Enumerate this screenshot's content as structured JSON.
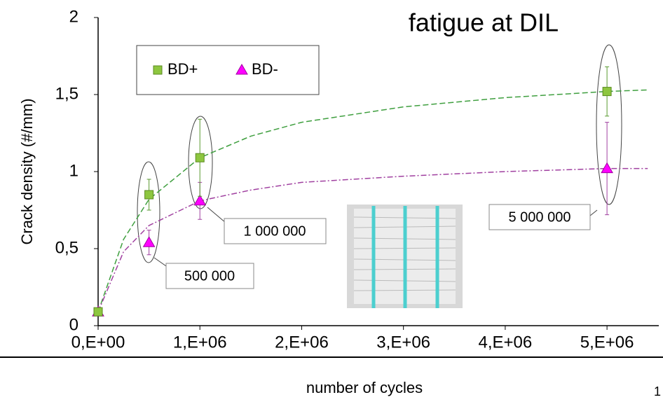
{
  "chart_data": {
    "type": "scatter",
    "title": "fatigue at DIL",
    "x_label": "number of cycles",
    "y_label": "Crack density (#/mm)",
    "xlim": [
      0,
      5500000
    ],
    "ylim": [
      0,
      2
    ],
    "xticks": [
      {
        "value": 0,
        "label": "0,E+00"
      },
      {
        "value": 1000000,
        "label": "1,E+06"
      },
      {
        "value": 2000000,
        "label": "2,E+06"
      },
      {
        "value": 3000000,
        "label": "3,E+06"
      },
      {
        "value": 4000000,
        "label": "4,E+06"
      },
      {
        "value": 5000000,
        "label": "5,E+06"
      }
    ],
    "yticks": [
      0,
      {
        "value": 0.5,
        "label": "0,5"
      },
      1,
      {
        "value": 1.5,
        "label": "1,5"
      },
      2
    ],
    "series": [
      {
        "name": "BD+",
        "color": "#8dc63f",
        "marker": "square",
        "x": [
          0,
          500000,
          1000000,
          5000000
        ],
        "values": [
          0.09,
          0.85,
          1.09,
          1.52
        ],
        "errors": [
          0,
          0.1,
          0.25,
          0.16
        ]
      },
      {
        "name": "BD-",
        "color": "#ff00ff",
        "marker": "triangle",
        "x": [
          0,
          500000,
          1000000,
          5000000
        ],
        "values": [
          0.09,
          0.54,
          0.81,
          1.02
        ],
        "errors": [
          0,
          0.08,
          0.12,
          0.3
        ]
      }
    ],
    "trendlines": [
      {
        "color": "#3f9f3f",
        "dash": "8 4",
        "x": [
          0,
          250000,
          500000,
          1000000,
          1500000,
          2000000,
          3000000,
          4000000,
          5000000,
          5400000
        ],
        "values": [
          0.09,
          0.56,
          0.82,
          1.09,
          1.23,
          1.32,
          1.42,
          1.48,
          1.52,
          1.53
        ]
      },
      {
        "color": "#a040a0",
        "dash": "8 3 2 3",
        "x": [
          0,
          250000,
          500000,
          1000000,
          1500000,
          2000000,
          3000000,
          4000000,
          5000000,
          5400000
        ],
        "values": [
          0.09,
          0.48,
          0.65,
          0.81,
          0.88,
          0.93,
          0.97,
          1.0,
          1.02,
          1.02
        ]
      }
    ],
    "annotations": [
      "500 000",
      "1 000 000",
      "5 000 000"
    ],
    "page_number": "1"
  }
}
